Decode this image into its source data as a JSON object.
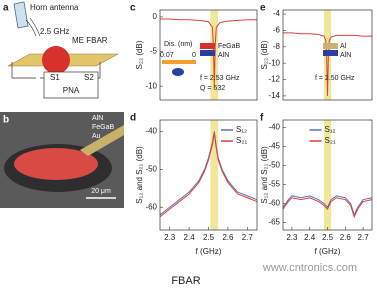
{
  "panels": {
    "a": {
      "label": "a",
      "texts": [
        "Horn antenna",
        "2.5 GHz",
        "ME FBAR",
        "S1",
        "S2",
        "PNA"
      ]
    },
    "b": {
      "label": "b",
      "texts": [
        "AlN",
        "FeGaB",
        "Au",
        "20 μm"
      ]
    }
  },
  "chart_data": [
    {
      "type": "line",
      "panel_label": "c",
      "ylabel": "S₂₂ (dB)",
      "x": [
        2.25,
        2.3,
        2.35,
        2.4,
        2.45,
        2.5,
        2.52,
        2.525,
        2.53,
        2.535,
        2.54,
        2.56,
        2.6,
        2.65,
        2.7,
        2.75
      ],
      "series": [
        {
          "name": "S22",
          "color": "#d9413a",
          "values": [
            -0.3,
            -0.3,
            -0.4,
            -0.4,
            -0.5,
            -0.7,
            -1.5,
            -4,
            -10,
            -4,
            -1.5,
            -0.8,
            -0.6,
            -0.5,
            -0.4,
            -0.4
          ]
        }
      ],
      "xlim": [
        2.25,
        2.75
      ],
      "ylim": [
        -12,
        1
      ],
      "yticks": [
        0,
        -5,
        -10
      ],
      "highlight_x": [
        2.51,
        2.55
      ],
      "annotations": [
        "Dis. (nm)",
        "0.07",
        "0",
        "FeGaB",
        "AlN",
        "f = 2.53 GHz",
        "Q = 632"
      ]
    },
    {
      "type": "line",
      "panel_label": "d",
      "ylabel": "S₁₂ and S₂₁ (dB)",
      "xlabel": "f (GHz)",
      "x": [
        2.25,
        2.3,
        2.35,
        2.4,
        2.45,
        2.48,
        2.5,
        2.51,
        2.52,
        2.53,
        2.54,
        2.55,
        2.57,
        2.6,
        2.65,
        2.7,
        2.75
      ],
      "series": [
        {
          "name": "S₁₂",
          "color": "#5b6fb8",
          "values": [
            -62,
            -60,
            -58,
            -56,
            -53,
            -50,
            -47,
            -45,
            -43,
            -40,
            -44,
            -47,
            -50,
            -53,
            -56,
            -57,
            -58
          ]
        },
        {
          "name": "S₂₁",
          "color": "#d9413a",
          "values": [
            -62.5,
            -60.5,
            -58.5,
            -56.5,
            -53.5,
            -50.5,
            -47.5,
            -45.5,
            -43.5,
            -40.5,
            -44.5,
            -47.5,
            -50.5,
            -53.5,
            -56.5,
            -57.5,
            -58.5
          ]
        }
      ],
      "xlim": [
        2.25,
        2.75
      ],
      "ylim": [
        -66,
        -37
      ],
      "yticks": [
        -40,
        -50,
        -60
      ],
      "xticks": [
        2.3,
        2.4,
        2.5,
        2.6,
        2.7
      ],
      "highlight_x": [
        2.51,
        2.55
      ],
      "legend": "upper right"
    },
    {
      "type": "line",
      "panel_label": "e",
      "ylabel": "S₂₂ (dB)",
      "x": [
        2.25,
        2.3,
        2.35,
        2.4,
        2.45,
        2.48,
        2.49,
        2.495,
        2.5,
        2.505,
        2.51,
        2.52,
        2.55,
        2.6,
        2.65,
        2.7,
        2.75
      ],
      "series": [
        {
          "name": "S22",
          "color": "#d9413a",
          "values": [
            -6.3,
            -6.3,
            -6.4,
            -6.4,
            -6.5,
            -6.7,
            -7.2,
            -9,
            -14,
            -9,
            -7.2,
            -6.8,
            -6.6,
            -6.6,
            -6.6,
            -6.7,
            -6.7
          ]
        }
      ],
      "xlim": [
        2.25,
        2.75
      ],
      "ylim": [
        -14.5,
        -3.5
      ],
      "yticks": [
        -4,
        -6,
        -8,
        -10,
        -12,
        -14
      ],
      "highlight_x": [
        2.48,
        2.52
      ],
      "annotations": [
        "Al",
        "AlN",
        "f = 2.50 GHz"
      ]
    },
    {
      "type": "line",
      "panel_label": "f",
      "ylabel": "S₁₂ and S₂₁ (dB)",
      "xlabel": "f (GHz)",
      "x": [
        2.25,
        2.28,
        2.3,
        2.35,
        2.4,
        2.45,
        2.48,
        2.5,
        2.52,
        2.55,
        2.6,
        2.63,
        2.65,
        2.67,
        2.7,
        2.75
      ],
      "series": [
        {
          "name": "S₁₂",
          "color": "#5b6fb8",
          "values": [
            -61,
            -59,
            -58,
            -58.5,
            -58,
            -59,
            -60,
            -61,
            -59,
            -58,
            -58.5,
            -60,
            -63,
            -61,
            -59,
            -58.5
          ]
        },
        {
          "name": "S₂₁",
          "color": "#d9413a",
          "values": [
            -61.5,
            -59.5,
            -58.5,
            -59,
            -58.5,
            -59.5,
            -60.5,
            -61.5,
            -59.5,
            -58.5,
            -59,
            -60.5,
            -63.5,
            -61.5,
            -59.5,
            -59
          ]
        }
      ],
      "xlim": [
        2.25,
        2.75
      ],
      "ylim": [
        -67,
        -38
      ],
      "yticks": [
        -40,
        -45,
        -50,
        -55,
        -60,
        -65
      ],
      "xticks": [
        2.3,
        2.4,
        2.5,
        2.6,
        2.7
      ],
      "highlight_x": [
        2.48,
        2.52
      ],
      "legend": "upper center"
    }
  ],
  "caption": "FBAR",
  "watermark": "www.cntronics.com"
}
